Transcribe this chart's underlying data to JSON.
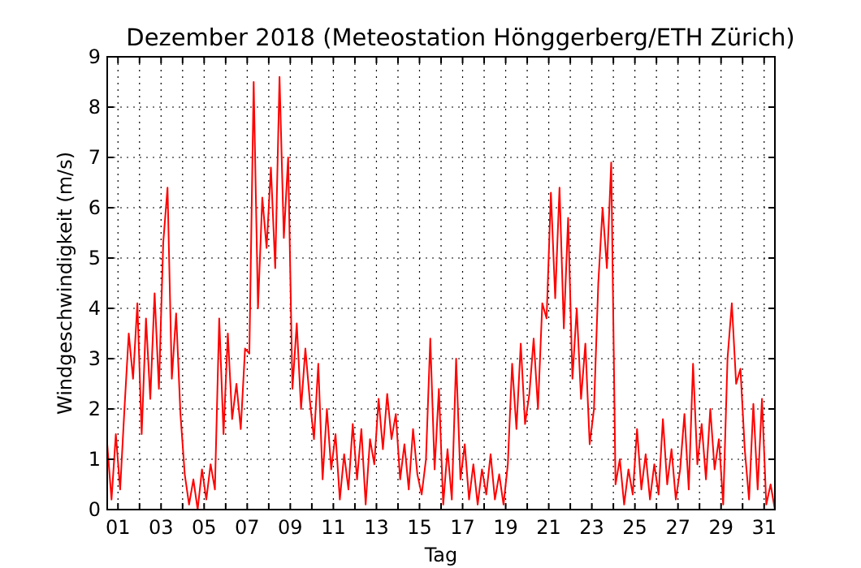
{
  "chart_data": {
    "type": "line",
    "title": "Dezember 2018  (Meteostation Hönggerberg/ETH Zürich)",
    "xlabel": "Tag",
    "ylabel": "Windgeschwindigkeit (m/s)",
    "x": [
      0.5,
      0.7,
      0.9,
      1.1,
      1.3,
      1.5,
      1.7,
      1.9,
      2.1,
      2.3,
      2.5,
      2.7,
      2.9,
      3.1,
      3.3,
      3.5,
      3.7,
      3.9,
      4.1,
      4.3,
      4.5,
      4.7,
      4.9,
      5.1,
      5.3,
      5.5,
      5.7,
      5.9,
      6.1,
      6.3,
      6.5,
      6.7,
      6.9,
      7.1,
      7.3,
      7.5,
      7.7,
      7.9,
      8.1,
      8.3,
      8.5,
      8.7,
      8.9,
      9.1,
      9.3,
      9.5,
      9.7,
      9.9,
      10.1,
      10.3,
      10.5,
      10.7,
      10.9,
      11.1,
      11.3,
      11.5,
      11.7,
      11.9,
      12.1,
      12.3,
      12.5,
      12.7,
      12.9,
      13.1,
      13.3,
      13.5,
      13.7,
      13.9,
      14.1,
      14.3,
      14.5,
      14.7,
      14.9,
      15.1,
      15.3,
      15.5,
      15.7,
      15.9,
      16.1,
      16.3,
      16.5,
      16.7,
      16.9,
      17.1,
      17.3,
      17.5,
      17.7,
      17.9,
      18.1,
      18.3,
      18.5,
      18.7,
      18.9,
      19.1,
      19.3,
      19.5,
      19.7,
      19.9,
      20.1,
      20.3,
      20.5,
      20.7,
      20.9,
      21.1,
      21.3,
      21.5,
      21.7,
      21.9,
      22.1,
      22.3,
      22.5,
      22.7,
      22.9,
      23.1,
      23.3,
      23.5,
      23.7,
      23.9,
      24.1,
      24.3,
      24.5,
      24.7,
      24.9,
      25.1,
      25.3,
      25.5,
      25.7,
      25.9,
      26.1,
      26.3,
      26.5,
      26.7,
      26.9,
      27.1,
      27.3,
      27.5,
      27.7,
      27.9,
      28.1,
      28.3,
      28.5,
      28.7,
      28.9,
      29.1,
      29.3,
      29.5,
      29.7,
      29.9,
      30.1,
      30.3,
      30.5,
      30.7,
      30.9,
      31.1,
      31.3,
      31.5
    ],
    "series": [
      {
        "color": "#ff0000",
        "values": [
          1.3,
          0.2,
          1.5,
          0.4,
          2.0,
          3.5,
          2.6,
          4.1,
          1.5,
          3.8,
          2.2,
          4.3,
          2.4,
          5.3,
          6.4,
          2.6,
          3.9,
          1.9,
          0.7,
          0.1,
          0.6,
          0,
          0.8,
          0.2,
          0.9,
          0.4,
          3.8,
          1.5,
          3.5,
          1.8,
          2.5,
          1.6,
          3.2,
          3.1,
          8.5,
          4.0,
          6.2,
          5.2,
          6.8,
          4.8,
          8.6,
          5.4,
          7.0,
          2.4,
          3.7,
          2.0,
          3.2,
          2.2,
          1.4,
          2.9,
          0.6,
          2.0,
          0.8,
          1.5,
          0.2,
          1.1,
          0.4,
          1.7,
          0.6,
          1.6,
          0.1,
          1.4,
          0.9,
          2.2,
          1.2,
          2.3,
          1.4,
          1.9,
          0.6,
          1.3,
          0.4,
          1.6,
          0.7,
          0.3,
          1.0,
          3.4,
          0.8,
          2.4,
          0.1,
          1.2,
          0.2,
          3.0,
          0.6,
          1.3,
          0.2,
          0.9,
          0.1,
          0.8,
          0.3,
          1.1,
          0.2,
          0.7,
          0.1,
          0.9,
          2.9,
          1.6,
          3.3,
          1.7,
          2.3,
          3.4,
          2.0,
          4.1,
          3.8,
          6.3,
          4.2,
          6.4,
          3.6,
          5.8,
          2.6,
          4.0,
          2.2,
          3.3,
          1.3,
          2.0,
          4.5,
          6.0,
          4.8,
          6.9,
          0.5,
          1.0,
          0.1,
          0.8,
          0.3,
          1.6,
          0.4,
          1.1,
          0.2,
          0.9,
          0.3,
          1.8,
          0.5,
          1.2,
          0.2,
          0.8,
          1.9,
          0.4,
          2.9,
          0.9,
          1.7,
          0.6,
          2.0,
          0.8,
          1.4,
          0.1,
          3.0,
          4.1,
          2.5,
          2.8,
          1.2,
          0.2,
          2.1,
          0.4,
          2.2,
          0.1,
          0.5,
          0.0
        ]
      }
    ],
    "xlim": [
      0.5,
      31.5
    ],
    "xticks": [
      {
        "value": 1,
        "label": "01"
      },
      {
        "value": 2,
        "label": null
      },
      {
        "value": 3,
        "label": "03"
      },
      {
        "value": 4,
        "label": null
      },
      {
        "value": 5,
        "label": "05"
      },
      {
        "value": 6,
        "label": null
      },
      {
        "value": 7,
        "label": "07"
      },
      {
        "value": 8,
        "label": null
      },
      {
        "value": 9,
        "label": "09"
      },
      {
        "value": 10,
        "label": null
      },
      {
        "value": 11,
        "label": "11"
      },
      {
        "value": 12,
        "label": null
      },
      {
        "value": 13,
        "label": "13"
      },
      {
        "value": 14,
        "label": null
      },
      {
        "value": 15,
        "label": "15"
      },
      {
        "value": 16,
        "label": null
      },
      {
        "value": 17,
        "label": "17"
      },
      {
        "value": 18,
        "label": null
      },
      {
        "value": 19,
        "label": "19"
      },
      {
        "value": 20,
        "label": null
      },
      {
        "value": 21,
        "label": "21"
      },
      {
        "value": 22,
        "label": null
      },
      {
        "value": 23,
        "label": "23"
      },
      {
        "value": 24,
        "label": null
      },
      {
        "value": 25,
        "label": "25"
      },
      {
        "value": 26,
        "label": null
      },
      {
        "value": 27,
        "label": "27"
      },
      {
        "value": 28,
        "label": null
      },
      {
        "value": 29,
        "label": "29"
      },
      {
        "value": 30,
        "label": null
      },
      {
        "value": 31,
        "label": "31"
      }
    ],
    "ylim": [
      0,
      9
    ],
    "yticks": [
      0,
      1,
      2,
      3,
      4,
      5,
      6,
      7,
      8,
      9
    ],
    "grid": true
  }
}
